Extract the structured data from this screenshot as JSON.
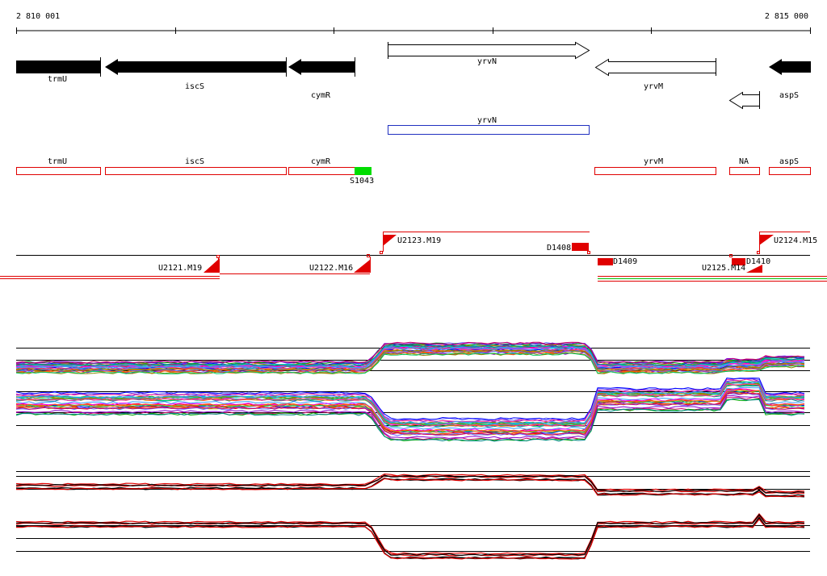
{
  "ruler": {
    "start_label": "2 810 001",
    "end_label": "2 815 000"
  },
  "genes_top": [
    {
      "name": "trmU",
      "strand": "-",
      "fill": "black"
    },
    {
      "name": "iscS",
      "strand": "-",
      "fill": "black"
    },
    {
      "name": "cymR",
      "strand": "-",
      "fill": "black"
    },
    {
      "name": "yrvN",
      "strand": "+",
      "fill": "white"
    },
    {
      "name": "yrvM",
      "strand": "-",
      "fill": "white"
    },
    {
      "name": "aspS",
      "strand": "-",
      "fill": "black"
    }
  ],
  "highlight_gene": {
    "name": "yrvN",
    "color": "#2030c0"
  },
  "annotation_boxes": [
    "trmU",
    "iscS",
    "cymR",
    "yrvM",
    "NA",
    "aspS"
  ],
  "site_marker": {
    "name": "S1043",
    "color": "#00cc00"
  },
  "segment_labels": [
    "U2121.M19",
    "U2122.M16",
    "U2123.M19",
    "D1408",
    "D1409",
    "U2125.M14",
    "D1410",
    "U2124.M15"
  ],
  "colors": {
    "feature": "#ff0000",
    "site": "#00dd00",
    "axis": "#000000"
  }
}
